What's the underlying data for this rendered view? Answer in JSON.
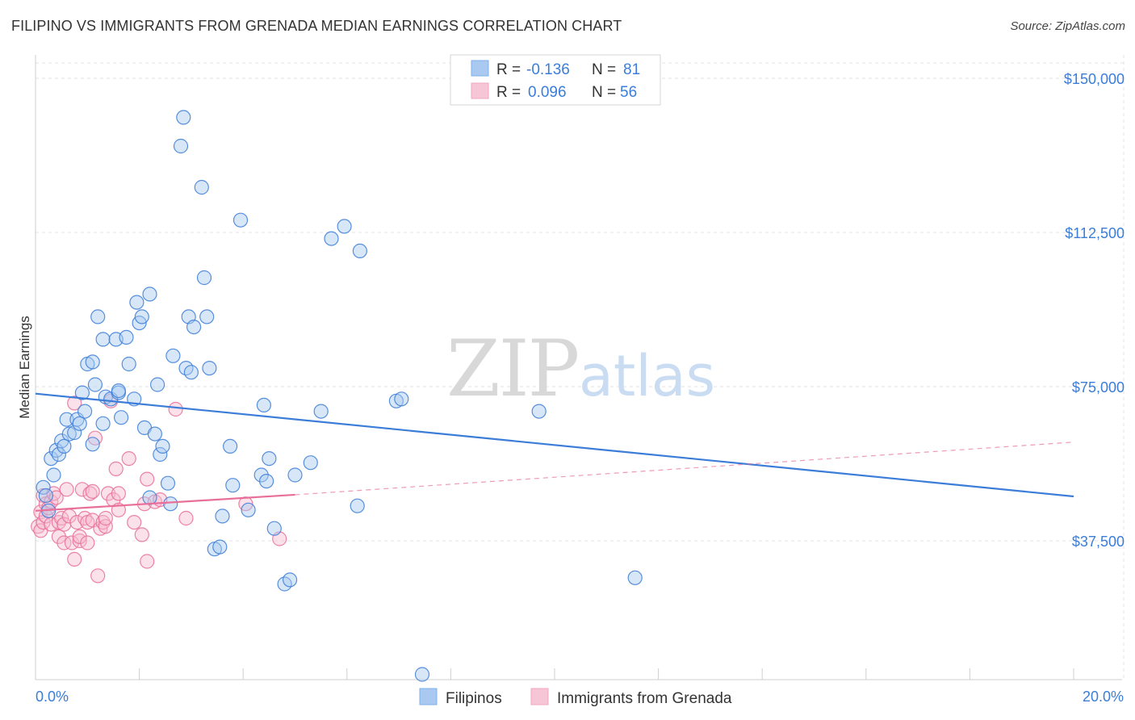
{
  "header": {
    "title": "FILIPINO VS IMMIGRANTS FROM GRENADA MEDIAN EARNINGS CORRELATION CHART",
    "source": "Source: ZipAtlas.com"
  },
  "watermark": {
    "zip": "ZIP",
    "atlas": "atlas"
  },
  "legend": {
    "rows": [
      {
        "r_label": "R =",
        "r_value": "-0.136",
        "n_label": "N =",
        "n_value": "81",
        "color": "#7fb0ea"
      },
      {
        "r_label": "R =",
        "r_value": "0.096",
        "n_label": "N =",
        "n_value": "56",
        "color": "#f0a6bf"
      }
    ]
  },
  "colors": {
    "blue": "#3b7dd8",
    "blue_fill": "#a9c9f0",
    "pink": "#e86f99",
    "pink_fill": "#f6bcd0",
    "grid": "#e3e3e3"
  },
  "chart_data": {
    "type": "scatter",
    "title": "FILIPINO VS IMMIGRANTS FROM GRENADA MEDIAN EARNINGS CORRELATION CHART",
    "xlabel": "",
    "ylabel": "Median Earnings",
    "xlim": [
      0,
      20
    ],
    "ylim": [
      0,
      155000
    ],
    "x_tick_labels": [
      "0.0%",
      "20.0%"
    ],
    "y_ticks": [
      37500,
      75000,
      112500,
      150000
    ],
    "y_tick_labels": [
      "$37,500",
      "$75,000",
      "$112,500",
      "$150,000"
    ],
    "grid": true,
    "legend_position": "top-center",
    "series": [
      {
        "name": "Filipinos",
        "color": "#3b7dd8",
        "r": -0.136,
        "n": 81,
        "trend": {
          "x": [
            0,
            20
          ],
          "y": [
            73300,
            48300
          ]
        },
        "points": [
          [
            0.15,
            50500
          ],
          [
            0.2,
            48500
          ],
          [
            0.25,
            44800
          ],
          [
            0.3,
            57500
          ],
          [
            0.35,
            53500
          ],
          [
            0.4,
            59500
          ],
          [
            0.45,
            58500
          ],
          [
            0.5,
            61800
          ],
          [
            0.55,
            60500
          ],
          [
            0.6,
            67000
          ],
          [
            0.65,
            63500
          ],
          [
            0.75,
            63800
          ],
          [
            0.8,
            67000
          ],
          [
            0.85,
            66000
          ],
          [
            0.9,
            73500
          ],
          [
            0.95,
            69000
          ],
          [
            1.0,
            80500
          ],
          [
            1.1,
            81000
          ],
          [
            1.1,
            61000
          ],
          [
            1.15,
            75500
          ],
          [
            1.2,
            92000
          ],
          [
            1.3,
            66000
          ],
          [
            1.3,
            86500
          ],
          [
            1.35,
            72500
          ],
          [
            1.45,
            72000
          ],
          [
            1.55,
            86500
          ],
          [
            1.6,
            73500
          ],
          [
            1.6,
            74000
          ],
          [
            1.65,
            67500
          ],
          [
            1.75,
            87000
          ],
          [
            1.8,
            80500
          ],
          [
            1.9,
            72000
          ],
          [
            1.95,
            95500
          ],
          [
            2.0,
            90500
          ],
          [
            2.05,
            92000
          ],
          [
            2.1,
            65000
          ],
          [
            2.2,
            48000
          ],
          [
            2.2,
            97500
          ],
          [
            2.3,
            63500
          ],
          [
            2.35,
            75500
          ],
          [
            2.4,
            58500
          ],
          [
            2.45,
            60500
          ],
          [
            2.55,
            51500
          ],
          [
            2.6,
            46500
          ],
          [
            2.65,
            82500
          ],
          [
            2.8,
            133500
          ],
          [
            2.85,
            140500
          ],
          [
            2.9,
            79500
          ],
          [
            2.95,
            92000
          ],
          [
            3.0,
            78500
          ],
          [
            3.05,
            89500
          ],
          [
            3.2,
            123500
          ],
          [
            3.25,
            101500
          ],
          [
            3.3,
            92000
          ],
          [
            3.35,
            79500
          ],
          [
            3.45,
            35500
          ],
          [
            3.55,
            36000
          ],
          [
            3.6,
            43500
          ],
          [
            3.75,
            60500
          ],
          [
            3.8,
            51000
          ],
          [
            3.95,
            115500
          ],
          [
            4.1,
            45000
          ],
          [
            4.35,
            53500
          ],
          [
            4.4,
            70500
          ],
          [
            4.45,
            52000
          ],
          [
            4.5,
            57500
          ],
          [
            4.6,
            40500
          ],
          [
            4.8,
            27000
          ],
          [
            4.9,
            28000
          ],
          [
            5.0,
            53500
          ],
          [
            5.3,
            56500
          ],
          [
            5.5,
            69000
          ],
          [
            5.7,
            111000
          ],
          [
            5.95,
            114000
          ],
          [
            6.2,
            46000
          ],
          [
            6.25,
            108000
          ],
          [
            6.95,
            71500
          ],
          [
            7.05,
            72000
          ],
          [
            7.45,
            5000
          ],
          [
            9.7,
            69000
          ],
          [
            11.55,
            28500
          ]
        ]
      },
      {
        "name": "Immigrants from Grenada",
        "color": "#e86f99",
        "r": 0.096,
        "n": 56,
        "trend": {
          "x": [
            0,
            5
          ],
          "y": [
            44800,
            48700
          ]
        },
        "trend_dashed": {
          "x": [
            5,
            20
          ],
          "y": [
            48700,
            61500
          ]
        },
        "points": [
          [
            0.05,
            41000
          ],
          [
            0.1,
            44500
          ],
          [
            0.1,
            40000
          ],
          [
            0.15,
            48500
          ],
          [
            0.15,
            42000
          ],
          [
            0.2,
            46500
          ],
          [
            0.2,
            43500
          ],
          [
            0.25,
            45500
          ],
          [
            0.3,
            47000
          ],
          [
            0.3,
            41500
          ],
          [
            0.35,
            49000
          ],
          [
            0.4,
            48000
          ],
          [
            0.45,
            42000
          ],
          [
            0.45,
            38500
          ],
          [
            0.5,
            43000
          ],
          [
            0.55,
            41500
          ],
          [
            0.55,
            37000
          ],
          [
            0.6,
            50000
          ],
          [
            0.65,
            43500
          ],
          [
            0.7,
            37000
          ],
          [
            0.75,
            71000
          ],
          [
            0.75,
            33000
          ],
          [
            0.8,
            42000
          ],
          [
            0.85,
            37500
          ],
          [
            0.85,
            38500
          ],
          [
            0.9,
            50000
          ],
          [
            0.95,
            43000
          ],
          [
            1.0,
            42000
          ],
          [
            1.0,
            37000
          ],
          [
            1.05,
            49000
          ],
          [
            1.1,
            42500
          ],
          [
            1.1,
            49500
          ],
          [
            1.15,
            62500
          ],
          [
            1.2,
            29000
          ],
          [
            1.25,
            40500
          ],
          [
            1.3,
            42000
          ],
          [
            1.35,
            41000
          ],
          [
            1.35,
            43000
          ],
          [
            1.4,
            49000
          ],
          [
            1.45,
            71500
          ],
          [
            1.5,
            47500
          ],
          [
            1.55,
            55000
          ],
          [
            1.6,
            45000
          ],
          [
            1.6,
            49000
          ],
          [
            1.8,
            57500
          ],
          [
            1.9,
            42000
          ],
          [
            2.05,
            39000
          ],
          [
            2.1,
            46500
          ],
          [
            2.15,
            52500
          ],
          [
            2.15,
            32500
          ],
          [
            2.3,
            47000
          ],
          [
            2.4,
            47500
          ],
          [
            2.7,
            69500
          ],
          [
            2.9,
            43000
          ],
          [
            4.05,
            46500
          ],
          [
            4.7,
            38000
          ]
        ]
      }
    ]
  }
}
